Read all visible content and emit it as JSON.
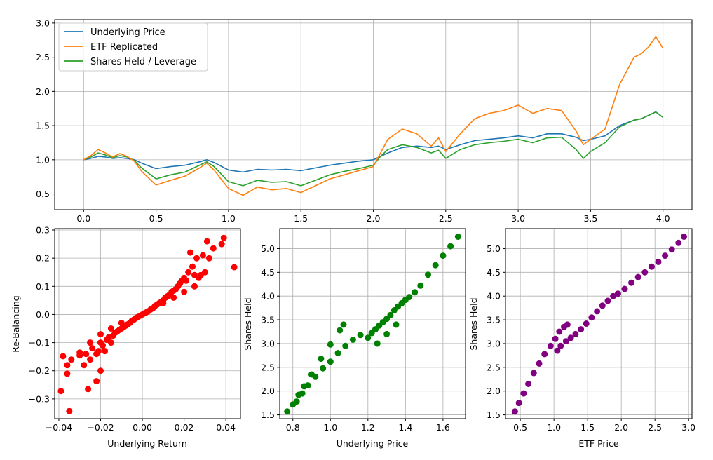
{
  "chart_data": [
    {
      "type": "line",
      "title": "",
      "xlabel": "",
      "ylabel": "",
      "xlim": [
        -0.2,
        4.2
      ],
      "ylim": [
        0.27,
        3.05
      ],
      "xticks": [
        0.0,
        0.5,
        1.0,
        1.5,
        2.0,
        2.5,
        3.0,
        3.5,
        4.0
      ],
      "yticks": [
        0.5,
        1.0,
        1.5,
        2.0,
        2.5,
        3.0
      ],
      "xtick_labels": [
        "0.0",
        "0.5",
        "1.0",
        "1.5",
        "2.0",
        "2.5",
        "3.0",
        "3.5",
        "4.0"
      ],
      "ytick_labels": [
        "0.5",
        "1.0",
        "1.5",
        "2.0",
        "2.5",
        "3.0"
      ],
      "grid": true,
      "legend": "top-left",
      "x": [
        0.0,
        0.05,
        0.1,
        0.15,
        0.2,
        0.25,
        0.3,
        0.35,
        0.4,
        0.5,
        0.6,
        0.7,
        0.8,
        0.85,
        0.9,
        1.0,
        1.1,
        1.2,
        1.3,
        1.4,
        1.5,
        1.6,
        1.7,
        1.8,
        1.9,
        2.0,
        2.05,
        2.1,
        2.2,
        2.3,
        2.4,
        2.45,
        2.5,
        2.6,
        2.7,
        2.8,
        2.9,
        3.0,
        3.1,
        3.2,
        3.3,
        3.4,
        3.45,
        3.5,
        3.6,
        3.7,
        3.8,
        3.85,
        3.9,
        3.95,
        4.0
      ],
      "series": [
        {
          "name": "Underlying Price",
          "color": "#1f77b4",
          "values": [
            1.0,
            1.02,
            1.05,
            1.04,
            1.02,
            1.03,
            1.02,
            1.0,
            0.95,
            0.87,
            0.9,
            0.92,
            0.97,
            1.0,
            0.96,
            0.85,
            0.82,
            0.86,
            0.85,
            0.86,
            0.84,
            0.88,
            0.92,
            0.95,
            0.98,
            1.0,
            1.05,
            1.1,
            1.18,
            1.2,
            1.18,
            1.2,
            1.15,
            1.22,
            1.28,
            1.3,
            1.32,
            1.35,
            1.32,
            1.38,
            1.38,
            1.33,
            1.28,
            1.3,
            1.35,
            1.5,
            1.58,
            1.6,
            1.65,
            1.7,
            1.62
          ]
        },
        {
          "name": "ETF Replicated",
          "color": "#ff7f0e",
          "values": [
            1.0,
            1.06,
            1.15,
            1.1,
            1.04,
            1.09,
            1.05,
            0.98,
            0.83,
            0.63,
            0.7,
            0.76,
            0.88,
            0.95,
            0.85,
            0.58,
            0.48,
            0.6,
            0.56,
            0.58,
            0.52,
            0.62,
            0.72,
            0.78,
            0.84,
            0.9,
            1.1,
            1.3,
            1.45,
            1.38,
            1.2,
            1.32,
            1.12,
            1.38,
            1.6,
            1.68,
            1.72,
            1.8,
            1.68,
            1.75,
            1.72,
            1.42,
            1.22,
            1.3,
            1.45,
            2.1,
            2.5,
            2.55,
            2.65,
            2.8,
            2.63
          ]
        },
        {
          "name": "Shares Held / Leverage",
          "color": "#2ca02c",
          "values": [
            1.0,
            1.04,
            1.1,
            1.07,
            1.03,
            1.06,
            1.04,
            0.99,
            0.88,
            0.72,
            0.78,
            0.82,
            0.92,
            0.97,
            0.9,
            0.68,
            0.62,
            0.7,
            0.67,
            0.68,
            0.62,
            0.7,
            0.78,
            0.83,
            0.87,
            0.92,
            1.05,
            1.15,
            1.22,
            1.18,
            1.1,
            1.14,
            1.02,
            1.15,
            1.22,
            1.25,
            1.27,
            1.3,
            1.25,
            1.32,
            1.33,
            1.15,
            1.02,
            1.12,
            1.25,
            1.48,
            1.58,
            1.6,
            1.65,
            1.7,
            1.62
          ]
        }
      ]
    },
    {
      "type": "scatter",
      "title": "",
      "xlabel": "Underlying Return",
      "ylabel": "Re-Balancing",
      "xlim": [
        -0.042,
        0.047
      ],
      "ylim": [
        -0.37,
        0.305
      ],
      "xticks": [
        -0.04,
        -0.02,
        0.0,
        0.02,
        0.04
      ],
      "yticks": [
        -0.3,
        -0.2,
        -0.1,
        0.0,
        0.1,
        0.2,
        0.3
      ],
      "xtick_labels": [
        "−0.04",
        "−0.02",
        "0.00",
        "0.02",
        "0.04"
      ],
      "ytick_labels": [
        "−0.3",
        "−0.2",
        "−0.1",
        "0.0",
        "0.1",
        "0.2",
        "0.3"
      ],
      "grid": true,
      "color": "#ff0000",
      "x": [
        -0.039,
        -0.038,
        -0.036,
        -0.036,
        -0.035,
        -0.034,
        -0.03,
        -0.03,
        -0.028,
        -0.027,
        -0.026,
        -0.025,
        -0.024,
        -0.022,
        -0.022,
        -0.021,
        -0.02,
        -0.02,
        -0.019,
        -0.018,
        -0.017,
        -0.016,
        -0.015,
        -0.014,
        -0.013,
        -0.012,
        -0.011,
        -0.01,
        -0.009,
        -0.008,
        -0.007,
        -0.006,
        -0.005,
        -0.004,
        -0.003,
        -0.002,
        -0.001,
        0.0,
        0.001,
        0.002,
        0.003,
        0.004,
        0.005,
        0.006,
        0.007,
        0.008,
        0.009,
        0.01,
        0.011,
        0.012,
        0.013,
        0.014,
        0.015,
        0.016,
        0.017,
        0.018,
        0.019,
        0.02,
        0.021,
        0.022,
        0.023,
        0.024,
        0.025,
        0.026,
        0.027,
        0.028,
        0.029,
        0.03,
        0.031,
        0.032,
        0.034,
        0.038,
        0.039,
        0.044,
        -0.02,
        -0.015,
        -0.01,
        0.01,
        0.015,
        0.02,
        -0.025,
        0.025,
        -0.018,
        0.018
      ],
      "y": [
        -0.272,
        -0.148,
        -0.18,
        -0.21,
        -0.343,
        -0.16,
        -0.135,
        -0.145,
        -0.18,
        -0.14,
        -0.265,
        -0.16,
        -0.12,
        -0.237,
        -0.14,
        -0.13,
        -0.2,
        -0.1,
        -0.11,
        -0.13,
        -0.09,
        -0.08,
        -0.1,
        -0.075,
        -0.065,
        -0.06,
        -0.055,
        -0.05,
        -0.045,
        -0.04,
        -0.035,
        -0.03,
        -0.022,
        -0.018,
        -0.012,
        -0.008,
        -0.004,
        0.0,
        0.004,
        0.008,
        0.012,
        0.018,
        0.022,
        0.03,
        0.035,
        0.04,
        0.045,
        0.05,
        0.06,
        0.065,
        0.07,
        0.08,
        0.085,
        0.09,
        0.1,
        0.11,
        0.12,
        0.13,
        0.12,
        0.15,
        0.22,
        0.17,
        0.14,
        0.2,
        0.13,
        0.14,
        0.21,
        0.15,
        0.26,
        0.2,
        0.235,
        0.25,
        0.272,
        0.168,
        -0.07,
        -0.05,
        -0.03,
        0.04,
        0.06,
        0.08,
        -0.1,
        0.1,
        -0.13,
        0.11
      ]
    },
    {
      "type": "scatter",
      "title": "",
      "xlabel": "Underlying Price",
      "ylabel": "Shares Held",
      "xlim": [
        0.73,
        1.72
      ],
      "ylim": [
        1.42,
        5.42
      ],
      "xticks": [
        0.8,
        1.0,
        1.2,
        1.4,
        1.6
      ],
      "yticks": [
        1.5,
        2.0,
        2.5,
        3.0,
        3.5,
        4.0,
        4.5,
        5.0
      ],
      "xtick_labels": [
        "0.8",
        "1.0",
        "1.2",
        "1.4",
        "1.6"
      ],
      "ytick_labels": [
        "1.5",
        "2.0",
        "2.5",
        "3.0",
        "3.5",
        "4.0",
        "4.5",
        "5.0"
      ],
      "grid": true,
      "color": "#008000",
      "x": [
        0.77,
        0.8,
        0.83,
        0.86,
        0.9,
        0.95,
        1.0,
        1.05,
        1.07,
        0.82,
        0.85,
        0.88,
        0.92,
        0.96,
        1.0,
        1.04,
        1.08,
        1.12,
        1.16,
        1.2,
        1.22,
        1.24,
        1.26,
        1.28,
        1.3,
        1.32,
        1.34,
        1.36,
        1.38,
        1.4,
        1.42,
        1.45,
        1.48,
        1.52,
        1.56,
        1.6,
        1.64,
        1.68,
        1.25,
        1.3,
        1.35
      ],
      "y": [
        1.57,
        1.72,
        1.92,
        2.1,
        2.35,
        2.68,
        2.98,
        3.28,
        3.4,
        1.78,
        1.95,
        2.12,
        2.3,
        2.48,
        2.62,
        2.8,
        2.95,
        3.08,
        3.18,
        3.12,
        3.22,
        3.3,
        3.38,
        3.45,
        3.52,
        3.6,
        3.7,
        3.78,
        3.85,
        3.92,
        3.98,
        4.08,
        4.22,
        4.45,
        4.65,
        4.85,
        5.05,
        5.25,
        3.0,
        3.2,
        3.4
      ]
    },
    {
      "type": "scatter",
      "title": "",
      "xlabel": "ETF Price",
      "ylabel": "Shares Held",
      "xlim": [
        0.28,
        3.05
      ],
      "ylim": [
        1.42,
        5.42
      ],
      "xticks": [
        0.5,
        1.0,
        1.5,
        2.0,
        2.5,
        3.0
      ],
      "yticks": [
        1.5,
        2.0,
        2.5,
        3.0,
        3.5,
        4.0,
        4.5,
        5.0
      ],
      "xtick_labels": [
        "0.5",
        "1.0",
        "1.5",
        "2.0",
        "2.5",
        "3.0"
      ],
      "ytick_labels": [
        "1.5",
        "2.0",
        "2.5",
        "3.0",
        "3.5",
        "4.0",
        "4.5",
        "5.0"
      ],
      "grid": true,
      "color": "#800080",
      "x": [
        0.42,
        0.48,
        0.55,
        0.62,
        0.7,
        0.78,
        0.86,
        0.95,
        1.02,
        1.08,
        1.15,
        1.2,
        1.05,
        1.1,
        1.18,
        1.25,
        1.32,
        1.4,
        1.48,
        1.56,
        1.64,
        1.72,
        1.8,
        1.88,
        1.95,
        2.05,
        2.15,
        2.25,
        2.35,
        2.45,
        2.55,
        2.65,
        2.75,
        2.85,
        2.93
      ],
      "y": [
        1.57,
        1.75,
        1.95,
        2.15,
        2.38,
        2.58,
        2.78,
        2.95,
        3.1,
        3.25,
        3.35,
        3.4,
        2.85,
        2.95,
        3.05,
        3.12,
        3.2,
        3.3,
        3.42,
        3.55,
        3.68,
        3.8,
        3.9,
        4.0,
        4.05,
        4.15,
        4.28,
        4.4,
        4.5,
        4.62,
        4.72,
        4.85,
        4.98,
        5.12,
        5.25
      ]
    }
  ]
}
